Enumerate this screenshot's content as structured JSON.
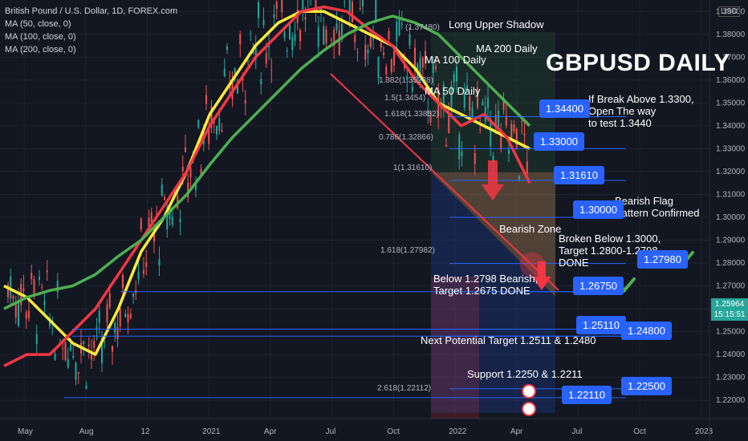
{
  "legend": {
    "symbol": "British Pound / U.S. Dollar, 1D, FOREX.com",
    "ma50": "MA (50, close, 0)",
    "ma100": "MA (100, close, 0)",
    "ma200": "MA (200, close, 0)"
  },
  "chart_title": "GBPUSD DAILY",
  "currency": "USD",
  "last_price": "1.25964",
  "countdown": "15:15:51",
  "annotations": {
    "long_upper_shadow": "Long Upper Shadow",
    "ma100_daily": "MA 100 Daily",
    "ma200_daily": "MA 200 Daily",
    "ma50_daily": "MA 50 Daily",
    "break_above_1": "If Break Above 1.3300,",
    "break_above_2": "Open The way",
    "break_above_3": "to test 1.3440",
    "bearish_flag_1": "Bearish Flag",
    "bearish_flag_2": "Pattern Confirmed",
    "bearish_zone": "Bearish Zone",
    "broken_below_1": "Broken Below 1.3000,",
    "broken_below_2": "Target  1.2800-1.2798",
    "broken_below_3": "DONE",
    "below_1": "Below 1.2798 Bearish,",
    "below_2": "Target 1.2675 DONE",
    "next_target": "Next Potential Target 1.2511 & 1.2480",
    "support": "Support 1.2250 & 1.2211"
  },
  "badges": {
    "b13440": "1.34400",
    "b13300": "1.33000",
    "b13161": "1.31610",
    "b13000": "1.30000",
    "b12798": "1.27980",
    "b12675": "1.26750",
    "b12511": "1.25110",
    "b12480": "1.24800",
    "b12250": "1.22500",
    "b12211": "1.22110"
  },
  "fib_labels": [
    "1.382(1.35238)",
    "1.5(1.3454)",
    "1.618(1.33852)",
    "0.786(1.32866)",
    "1(1.31610)",
    "1.618(1.27982)",
    "2.618(1.22112)",
    "(1.37480)"
  ],
  "chart_data": {
    "type": "line",
    "title": "GBPUSD DAILY",
    "xlabel": "",
    "ylabel": "",
    "x_ticks": [
      "May",
      "Aug",
      "12",
      "2021",
      "Apr",
      "Jul",
      "Oct",
      "2022",
      "Apr",
      "Jul",
      "Oct",
      "2023"
    ],
    "y_ticks": [
      1.39,
      1.38,
      1.37,
      1.36,
      1.35,
      1.34,
      1.33,
      1.32,
      1.31,
      1.3,
      1.29,
      1.28,
      1.27,
      1.26,
      1.25,
      1.24,
      1.23,
      1.22
    ],
    "ylim": [
      1.212,
      1.395
    ],
    "series": [
      {
        "name": "MA (50, close, 0)",
        "color": "#ffeb3b",
        "values": [
          1.27,
          1.265,
          1.255,
          1.245,
          1.24,
          1.26,
          1.285,
          1.3,
          1.32,
          1.345,
          1.36,
          1.375,
          1.385,
          1.39,
          1.39,
          1.385,
          1.38,
          1.375,
          1.365,
          1.35,
          1.345,
          1.34,
          1.335,
          1.33
        ]
      },
      {
        "name": "MA (100, close, 0)",
        "color": "#f23645",
        "values": [
          1.235,
          1.24,
          1.24,
          1.25,
          1.26,
          1.275,
          1.29,
          1.305,
          1.32,
          1.34,
          1.355,
          1.37,
          1.38,
          1.39,
          1.392,
          1.39,
          1.382,
          1.375,
          1.36,
          1.35,
          1.34,
          1.345,
          1.335,
          1.315
        ]
      },
      {
        "name": "MA (200, close, 0)",
        "color": "#4caf50",
        "values": [
          1.26,
          1.265,
          1.268,
          1.27,
          1.275,
          1.283,
          1.29,
          1.3,
          1.31,
          1.323,
          1.335,
          1.345,
          1.355,
          1.365,
          1.373,
          1.38,
          1.385,
          1.388,
          1.385,
          1.38,
          1.37,
          1.36,
          1.35,
          1.34
        ]
      }
    ],
    "grid": true,
    "legend": "top-left"
  },
  "colors": {
    "background": "#131722",
    "badge": "#2962ff",
    "up": "#26a69a",
    "down": "#ef5350"
  }
}
